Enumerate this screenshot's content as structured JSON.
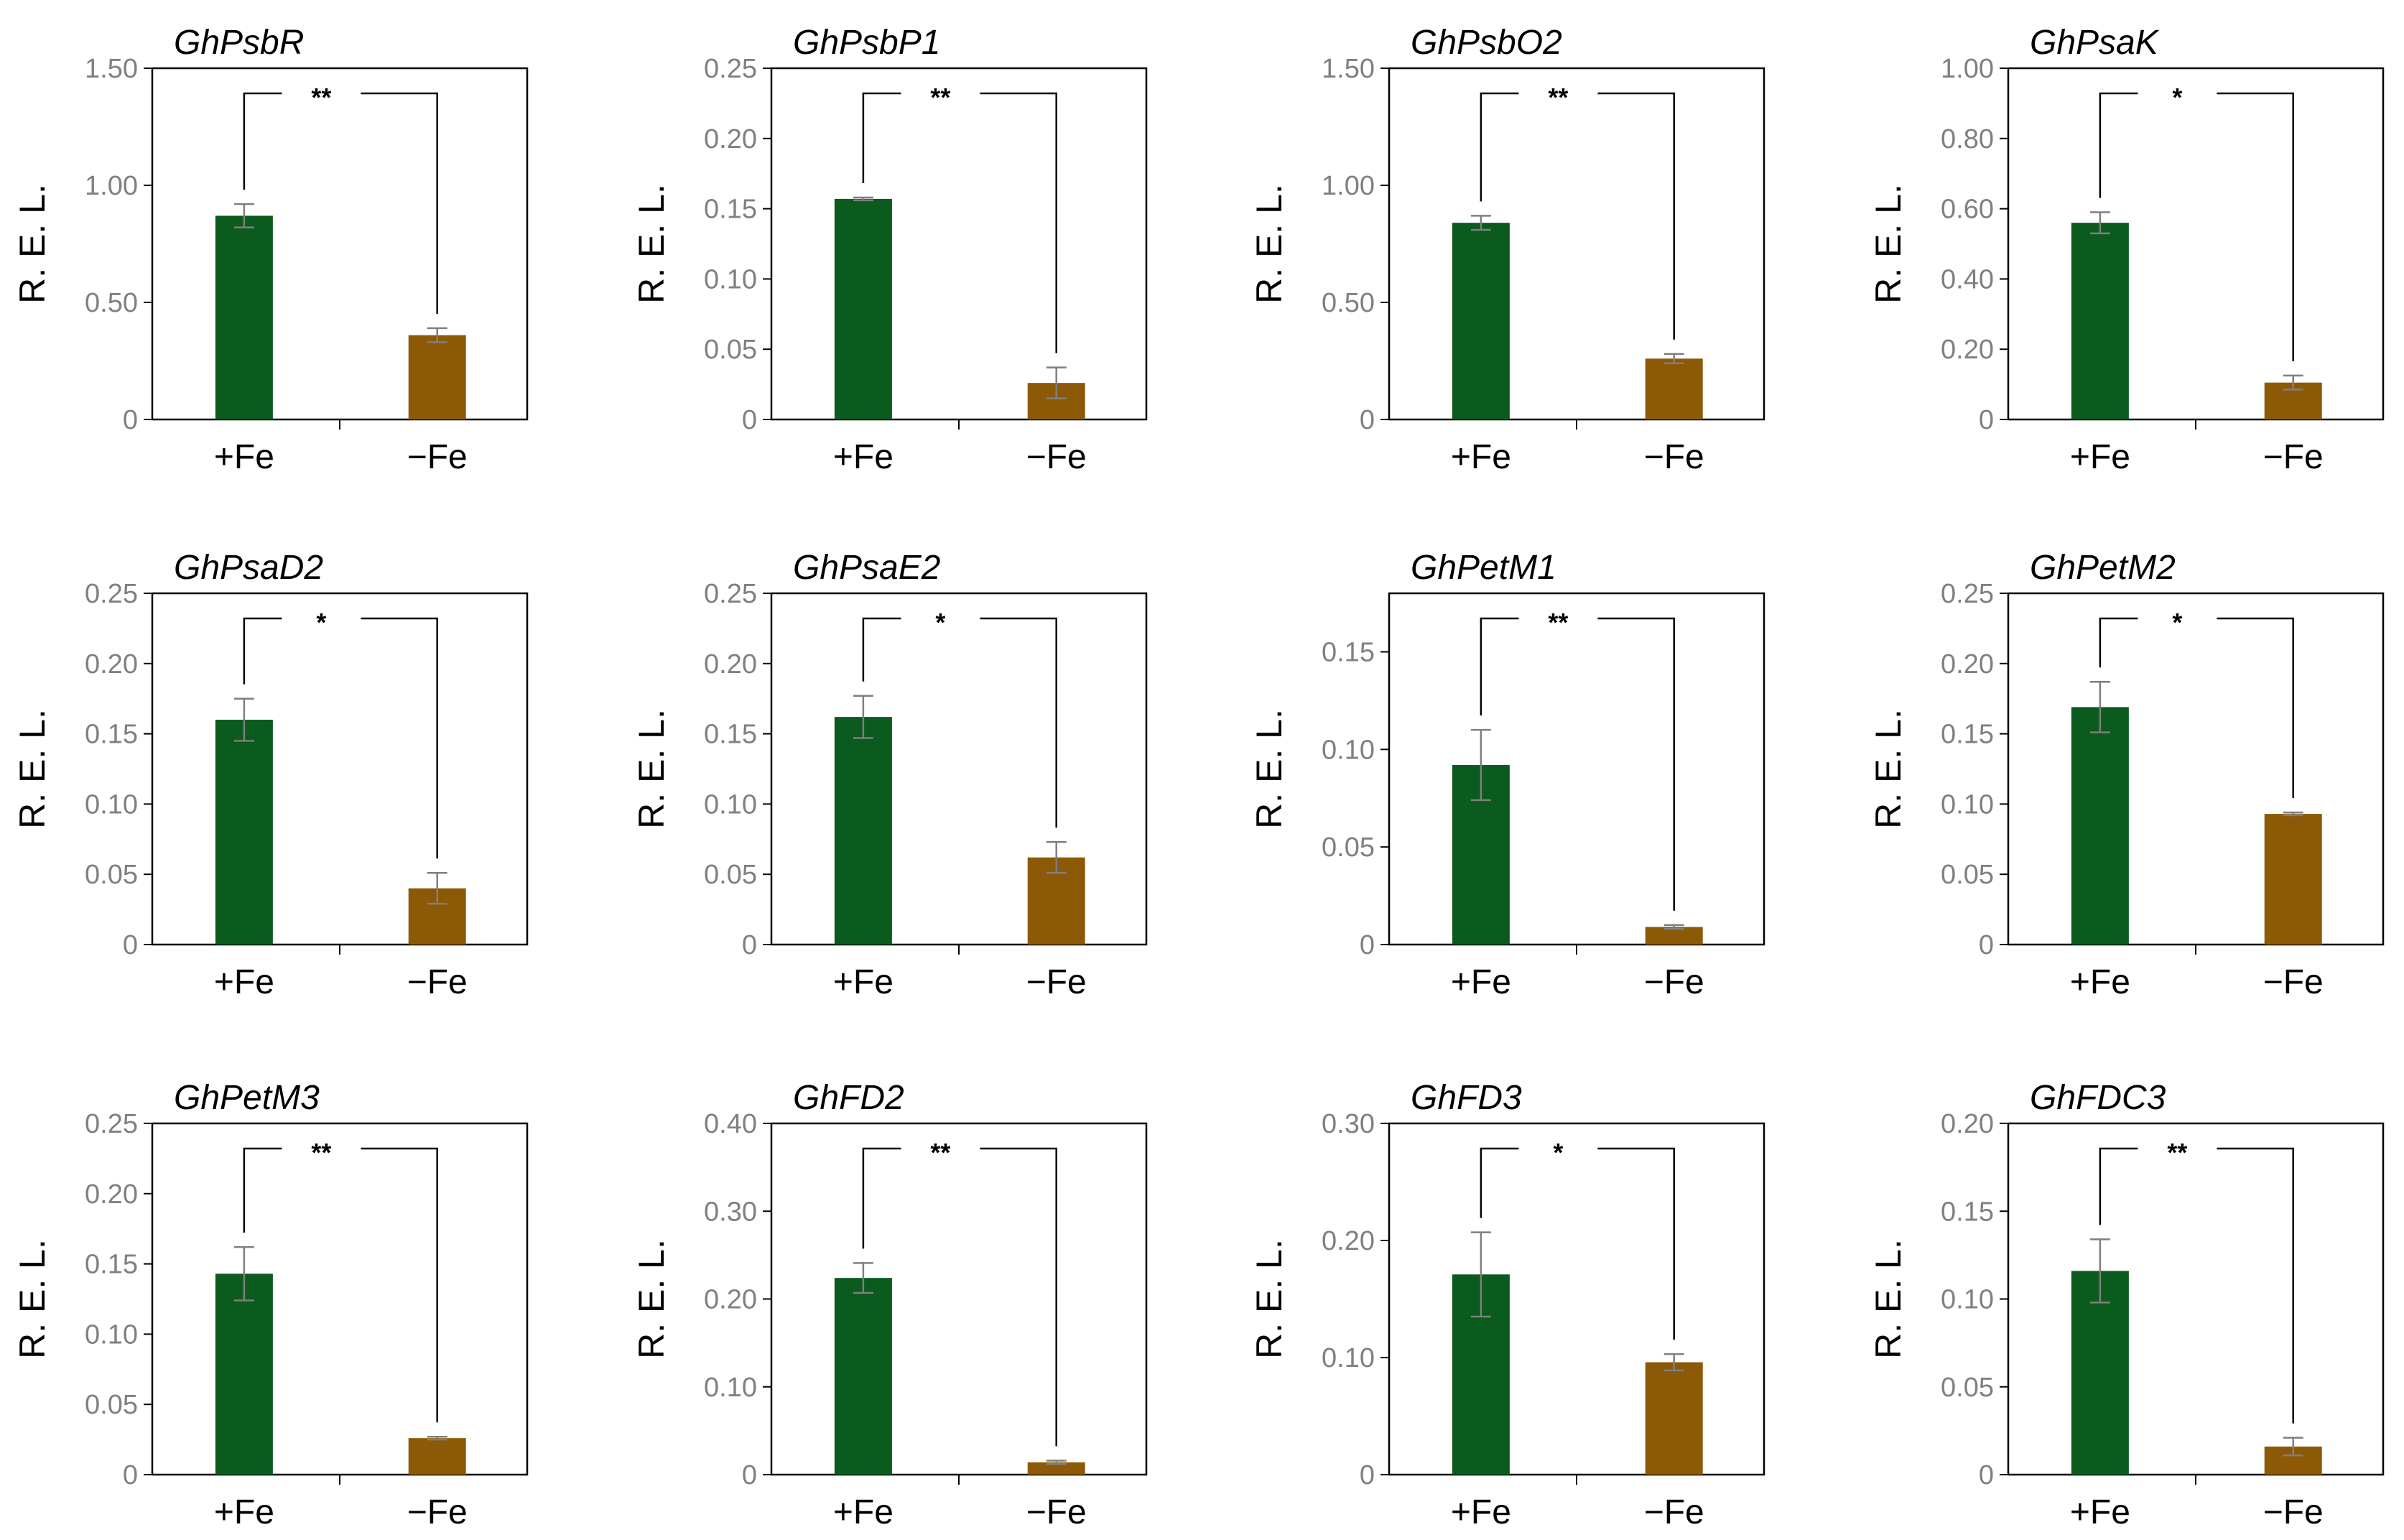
{
  "colors": {
    "plus_fe": "#0b5a1e",
    "minus_fe": "#8c5a06",
    "axis": "#000000",
    "tick_text": "#808080",
    "error": "#7f7f7f"
  },
  "chart_data": [
    {
      "type": "bar",
      "title": "GhPsbR",
      "ylabel": "R. E. L.",
      "categories": [
        "+Fe",
        "−Fe"
      ],
      "values": [
        0.87,
        0.36
      ],
      "errors": [
        0.05,
        0.03
      ],
      "ylim": [
        0,
        1.5
      ],
      "yticks": [
        "0",
        "0.50",
        "1.00",
        "1.50"
      ],
      "significance": "**"
    },
    {
      "type": "bar",
      "title": "GhPsbP1",
      "ylabel": "R. E. L.",
      "categories": [
        "+Fe",
        "−Fe"
      ],
      "values": [
        0.157,
        0.026
      ],
      "errors": [
        0.001,
        0.011
      ],
      "ylim": [
        0,
        0.25
      ],
      "yticks": [
        "0",
        "0.05",
        "0.10",
        "0.15",
        "0.20",
        "0.25"
      ],
      "significance": "**"
    },
    {
      "type": "bar",
      "title": "GhPsbO2",
      "ylabel": "R. E. L.",
      "categories": [
        "+Fe",
        "−Fe"
      ],
      "values": [
        0.84,
        0.26
      ],
      "errors": [
        0.03,
        0.02
      ],
      "ylim": [
        0,
        1.5
      ],
      "yticks": [
        "0",
        "0.50",
        "1.00",
        "1.50"
      ],
      "significance": "**"
    },
    {
      "type": "bar",
      "title": "GhPsaK",
      "ylabel": "R. E. L.",
      "categories": [
        "+Fe",
        "−Fe"
      ],
      "values": [
        0.56,
        0.105
      ],
      "errors": [
        0.03,
        0.02
      ],
      "ylim": [
        0,
        1.0
      ],
      "yticks": [
        "0",
        "0.20",
        "0.40",
        "0.60",
        "0.80",
        "1.00"
      ],
      "significance": "*"
    },
    {
      "type": "bar",
      "title": "GhPsaD2",
      "ylabel": "R. E. L.",
      "categories": [
        "+Fe",
        "−Fe"
      ],
      "values": [
        0.16,
        0.04
      ],
      "errors": [
        0.015,
        0.011
      ],
      "ylim": [
        0,
        0.25
      ],
      "yticks": [
        "0",
        "0.05",
        "0.10",
        "0.15",
        "0.20",
        "0.25"
      ],
      "significance": "*"
    },
    {
      "type": "bar",
      "title": "GhPsaE2",
      "ylabel": "R. E. L.",
      "categories": [
        "+Fe",
        "−Fe"
      ],
      "values": [
        0.162,
        0.062
      ],
      "errors": [
        0.015,
        0.011
      ],
      "ylim": [
        0,
        0.25
      ],
      "yticks": [
        "0",
        "0.05",
        "0.10",
        "0.15",
        "0.20",
        "0.25"
      ],
      "significance": "*"
    },
    {
      "type": "bar",
      "title": "GhPetM1",
      "ylabel": "R. E. L.",
      "categories": [
        "+Fe",
        "−Fe"
      ],
      "values": [
        0.092,
        0.009
      ],
      "errors": [
        0.018,
        0.001
      ],
      "ylim": [
        0,
        0.18
      ],
      "yticks": [
        "0",
        "0.05",
        "0.10",
        "0.15"
      ],
      "significance": "**"
    },
    {
      "type": "bar",
      "title": "GhPetM2",
      "ylabel": "R. E. L.",
      "categories": [
        "+Fe",
        "−Fe"
      ],
      "values": [
        0.169,
        0.093
      ],
      "errors": [
        0.018,
        0.001
      ],
      "ylim": [
        0,
        0.25
      ],
      "yticks": [
        "0",
        "0.05",
        "0.10",
        "0.15",
        "0.20",
        "0.25"
      ],
      "significance": "*"
    },
    {
      "type": "bar",
      "title": "GhPetM3",
      "ylabel": "R. E. L.",
      "categories": [
        "+Fe",
        "−Fe"
      ],
      "values": [
        0.143,
        0.026
      ],
      "errors": [
        0.019,
        0.001
      ],
      "ylim": [
        0,
        0.25
      ],
      "yticks": [
        "0",
        "0.05",
        "0.10",
        "0.15",
        "0.20",
        "0.25"
      ],
      "significance": "**"
    },
    {
      "type": "bar",
      "title": "GhFD2",
      "ylabel": "R. E. L.",
      "categories": [
        "+Fe",
        "−Fe"
      ],
      "values": [
        0.224,
        0.014
      ],
      "errors": [
        0.017,
        0.002
      ],
      "ylim": [
        0,
        0.4
      ],
      "yticks": [
        "0",
        "0.10",
        "0.20",
        "0.30",
        "0.40"
      ],
      "significance": "**"
    },
    {
      "type": "bar",
      "title": "GhFD3",
      "ylabel": "R. E. L.",
      "categories": [
        "+Fe",
        "−Fe"
      ],
      "values": [
        0.171,
        0.096
      ],
      "errors": [
        0.036,
        0.007
      ],
      "ylim": [
        0,
        0.3
      ],
      "yticks": [
        "0",
        "0.10",
        "0.20",
        "0.30"
      ],
      "significance": "*"
    },
    {
      "type": "bar",
      "title": "GhFDC3",
      "ylabel": "R. E. L.",
      "categories": [
        "+Fe",
        "−Fe"
      ],
      "values": [
        0.116,
        0.016
      ],
      "errors": [
        0.018,
        0.005
      ],
      "ylim": [
        0,
        0.2
      ],
      "yticks": [
        "0",
        "0.05",
        "0.10",
        "0.15",
        "0.20"
      ],
      "significance": "**"
    }
  ]
}
